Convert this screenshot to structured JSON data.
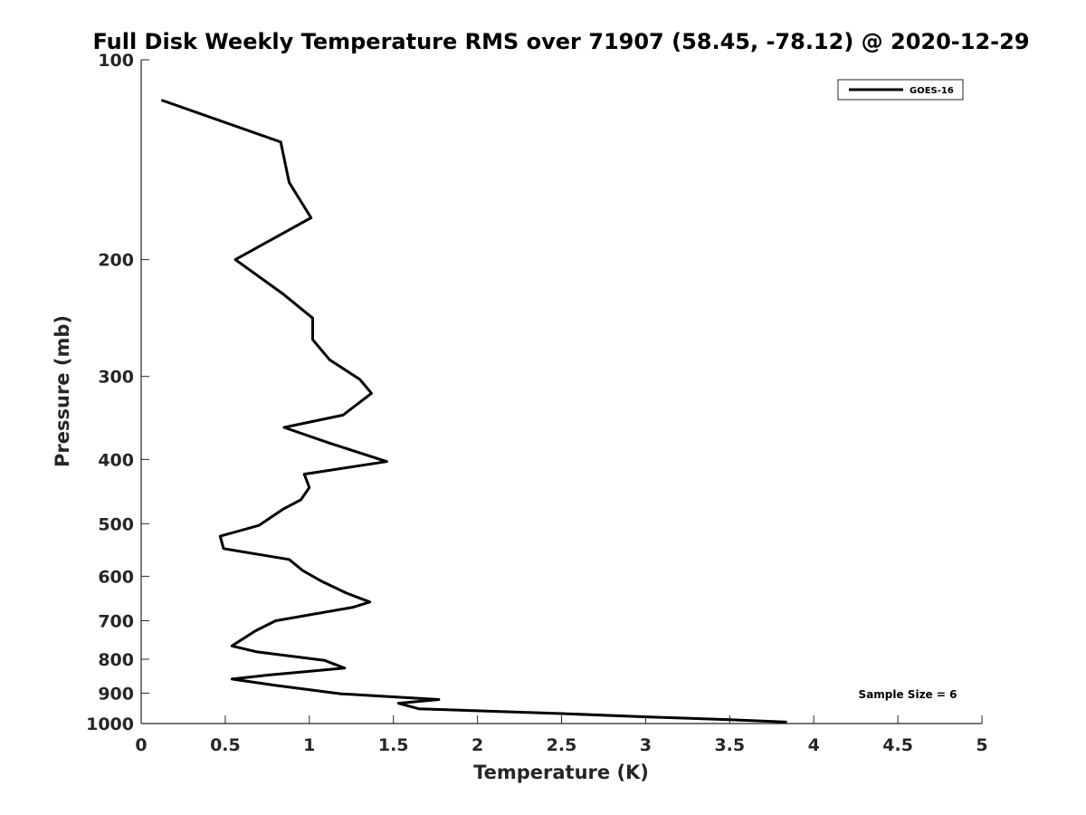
{
  "chart_data": {
    "type": "line",
    "title": "Full Disk Weekly Temperature RMS over 71907 (58.45, -78.12) @ 2020-12-29",
    "xlabel": "Temperature (K)",
    "ylabel": "Pressure (mb)",
    "xlim": [
      0,
      5
    ],
    "ylim": [
      100,
      1000
    ],
    "yscale": "log",
    "yreversed": true,
    "grid": false,
    "legend_position": "top-right",
    "x_ticks": [
      "0",
      "0.5",
      "1",
      "1.5",
      "2",
      "2.5",
      "3",
      "3.5",
      "4",
      "4.5",
      "5"
    ],
    "y_ticks": [
      "100",
      "200",
      "300",
      "400",
      "500",
      "600",
      "700",
      "800",
      "900",
      "1000"
    ],
    "annotation": "Sample Size = 6",
    "series": [
      {
        "name": "GOES-16",
        "color": "#000000",
        "points": [
          [
            0.12,
            115
          ],
          [
            0.83,
            133
          ],
          [
            0.88,
            153
          ],
          [
            1.01,
            173
          ],
          [
            0.56,
            200
          ],
          [
            0.84,
            225
          ],
          [
            1.02,
            245
          ],
          [
            1.02,
            264
          ],
          [
            1.12,
            283
          ],
          [
            1.3,
            303
          ],
          [
            1.37,
            318
          ],
          [
            1.2,
            343
          ],
          [
            0.85,
            358
          ],
          [
            1.12,
            378
          ],
          [
            1.46,
            403
          ],
          [
            0.97,
            421
          ],
          [
            1.0,
            441
          ],
          [
            0.95,
            460
          ],
          [
            0.84,
            476
          ],
          [
            0.7,
            503
          ],
          [
            0.47,
            522
          ],
          [
            0.49,
            545
          ],
          [
            0.88,
            566
          ],
          [
            0.96,
            588
          ],
          [
            1.07,
            610
          ],
          [
            1.22,
            636
          ],
          [
            1.36,
            656
          ],
          [
            1.26,
            668
          ],
          [
            0.8,
            700
          ],
          [
            0.68,
            725
          ],
          [
            0.54,
            764
          ],
          [
            0.69,
            780
          ],
          [
            1.09,
            803
          ],
          [
            1.21,
            825
          ],
          [
            0.76,
            845
          ],
          [
            0.54,
            857
          ],
          [
            0.8,
            876
          ],
          [
            1.19,
            902
          ],
          [
            1.77,
            920
          ],
          [
            1.53,
            932
          ],
          [
            1.65,
            950
          ],
          [
            2.5,
            966
          ],
          [
            3.0,
            977
          ],
          [
            3.5,
            987
          ],
          [
            3.84,
            995
          ]
        ]
      }
    ]
  }
}
